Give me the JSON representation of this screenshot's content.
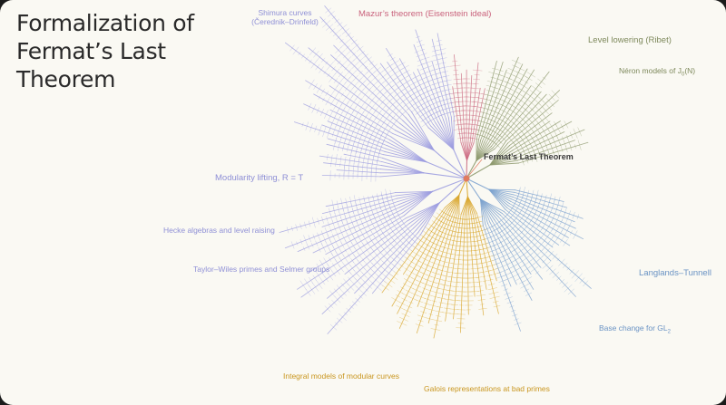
{
  "title": {
    "line1": "Formalization of",
    "line2": "Fermat’s Last",
    "line3": "Theorem"
  },
  "root": {
    "label": "Fermat’s Last Theorem",
    "color": "#e07b5f"
  },
  "branches": [
    {
      "key": "shimura",
      "line1": "Shimura curves",
      "line2": "(Čerednik–Drinfeld)",
      "color": "#9d9ee0"
    },
    {
      "key": "mazur",
      "label": "Mazur’s theorem (Eisenstein ideal)",
      "color": "#cc6b82"
    },
    {
      "key": "level_lowering",
      "label": "Level lowering (Ribet)",
      "color": "#8e9a6e"
    },
    {
      "key": "neron",
      "label": "Néron models of J",
      "sub": "0",
      "suffix": "(N)",
      "color": "#8e9a6e"
    },
    {
      "key": "modularity",
      "label": "Modularity lifting, R = T",
      "color": "#9d9ee0"
    },
    {
      "key": "hecke",
      "label": "Hecke algebras and level raising",
      "color": "#9d9ee0"
    },
    {
      "key": "taylor_wiles",
      "label": "Taylor–Wiles primes and Selmer groups",
      "color": "#9d9ee0"
    },
    {
      "key": "langlands",
      "label": "Langlands–Tunnell",
      "color": "#7ea3cf"
    },
    {
      "key": "base_change",
      "label": "Base change for GL",
      "sub": "2",
      "color": "#7ea3cf"
    },
    {
      "key": "integral",
      "label": "Integral models of modular curves",
      "color": "#d9a72e"
    },
    {
      "key": "galois",
      "label": "Galois representations at bad primes",
      "color": "#d9a72e"
    }
  ]
}
